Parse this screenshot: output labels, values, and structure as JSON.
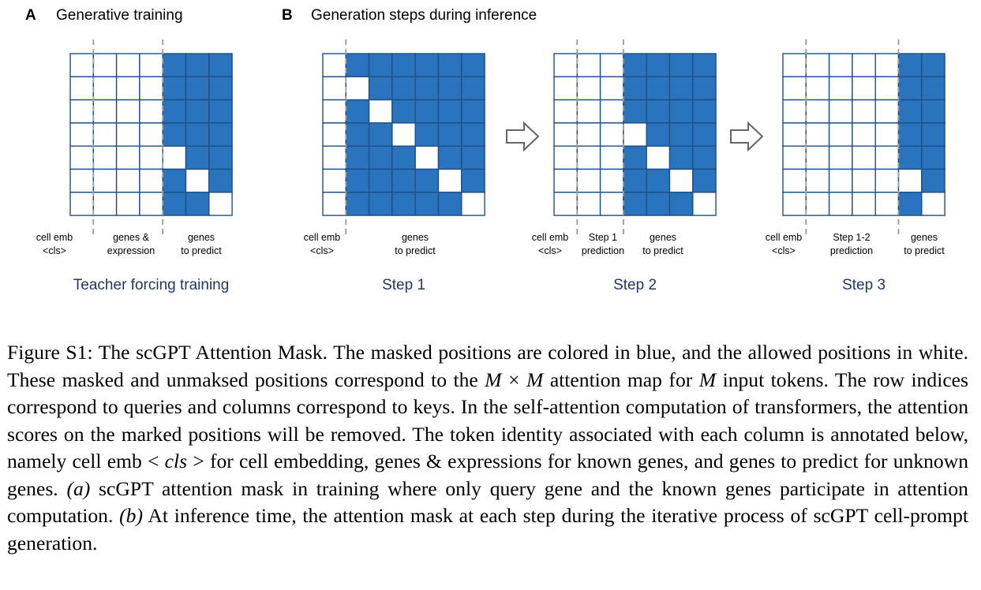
{
  "colors": {
    "masked": "#2a73bd",
    "allowed": "#ffffff",
    "grid": "#1f4f87",
    "divider": "#9a9a9a",
    "caption_blue": "#1f3864",
    "arrow": "#666666"
  },
  "panels": {
    "A": {
      "letter": "A",
      "title": "Generative training"
    },
    "B": {
      "letter": "B",
      "title": "Generation steps during inference"
    }
  },
  "matrices": [
    {
      "id": "training",
      "caption": "Teacher forcing training",
      "labels": [
        {
          "line1": "cell emb",
          "line2": "<cls>"
        },
        {
          "line1": "genes &",
          "line2": "expression"
        },
        {
          "line1": "genes",
          "line2": "to predict"
        }
      ],
      "masked": [
        [
          0,
          0,
          0,
          0,
          1,
          1,
          1
        ],
        [
          0,
          0,
          0,
          0,
          1,
          1,
          1
        ],
        [
          0,
          0,
          0,
          0,
          1,
          1,
          1
        ],
        [
          0,
          0,
          0,
          0,
          1,
          1,
          1
        ],
        [
          0,
          0,
          0,
          0,
          0,
          1,
          1
        ],
        [
          0,
          0,
          0,
          0,
          1,
          0,
          1
        ],
        [
          0,
          0,
          0,
          0,
          1,
          1,
          0
        ]
      ]
    },
    {
      "id": "step1",
      "caption": "Step 1",
      "labels": [
        {
          "line1": "cell emb",
          "line2": "<cls>"
        },
        {
          "line1": "genes",
          "line2": "to predict"
        }
      ],
      "masked": [
        [
          0,
          1,
          1,
          1,
          1,
          1,
          1
        ],
        [
          0,
          0,
          1,
          1,
          1,
          1,
          1
        ],
        [
          0,
          1,
          0,
          1,
          1,
          1,
          1
        ],
        [
          0,
          1,
          1,
          0,
          1,
          1,
          1
        ],
        [
          0,
          1,
          1,
          1,
          0,
          1,
          1
        ],
        [
          0,
          1,
          1,
          1,
          1,
          0,
          1
        ],
        [
          0,
          1,
          1,
          1,
          1,
          1,
          0
        ]
      ]
    },
    {
      "id": "step2",
      "caption": "Step 2",
      "labels": [
        {
          "line1": "cell emb",
          "line2": "<cls>"
        },
        {
          "line1": "Step 1",
          "line2": "prediction"
        },
        {
          "line1": "genes",
          "line2": "to predict"
        }
      ],
      "masked": [
        [
          0,
          0,
          0,
          1,
          1,
          1,
          1
        ],
        [
          0,
          0,
          0,
          1,
          1,
          1,
          1
        ],
        [
          0,
          0,
          0,
          1,
          1,
          1,
          1
        ],
        [
          0,
          0,
          0,
          0,
          1,
          1,
          1
        ],
        [
          0,
          0,
          0,
          1,
          0,
          1,
          1
        ],
        [
          0,
          0,
          0,
          1,
          1,
          0,
          1
        ],
        [
          0,
          0,
          0,
          1,
          1,
          1,
          0
        ]
      ]
    },
    {
      "id": "step3",
      "caption": "Step 3",
      "labels": [
        {
          "line1": "cell emb",
          "line2": "<cls>"
        },
        {
          "line1": "Step 1-2",
          "line2": "prediction"
        },
        {
          "line1": "genes",
          "line2": "to predict"
        }
      ],
      "masked": [
        [
          0,
          0,
          0,
          0,
          0,
          1,
          1
        ],
        [
          0,
          0,
          0,
          0,
          0,
          1,
          1
        ],
        [
          0,
          0,
          0,
          0,
          0,
          1,
          1
        ],
        [
          0,
          0,
          0,
          0,
          0,
          1,
          1
        ],
        [
          0,
          0,
          0,
          0,
          0,
          1,
          1
        ],
        [
          0,
          0,
          0,
          0,
          0,
          0,
          1
        ],
        [
          0,
          0,
          0,
          0,
          0,
          1,
          0
        ]
      ]
    }
  ],
  "caption": {
    "s1": "Figure S1: The scGPT Attention Mask. The masked positions are colored in blue, and the allowed positions in white. These masked and unmaksed positions correspond to the ",
    "m1": "M",
    "times": " × ",
    "m2": "M",
    "s2": " attention map for ",
    "m3": "M",
    "s3": " input tokens. The row indices correspond to queries and columns correspond to keys. In the self-attention computation of transformers, the attention scores on the marked positions will be removed. The token identity associated with each column is annotated below, namely cell emb ",
    "lt": "<",
    "cls": " cls ",
    "gt": ">",
    "s4": " for cell embedding, genes & expressions for known genes, and genes to predict for unknown genes. ",
    "a": "(a)",
    "s5": " scGPT attention mask in training where only query gene and the known genes participate in attention computation. ",
    "b": "(b)",
    "s6": " At inference time, the attention mask at each step during the iterative process of scGPT cell-prompt generation."
  }
}
